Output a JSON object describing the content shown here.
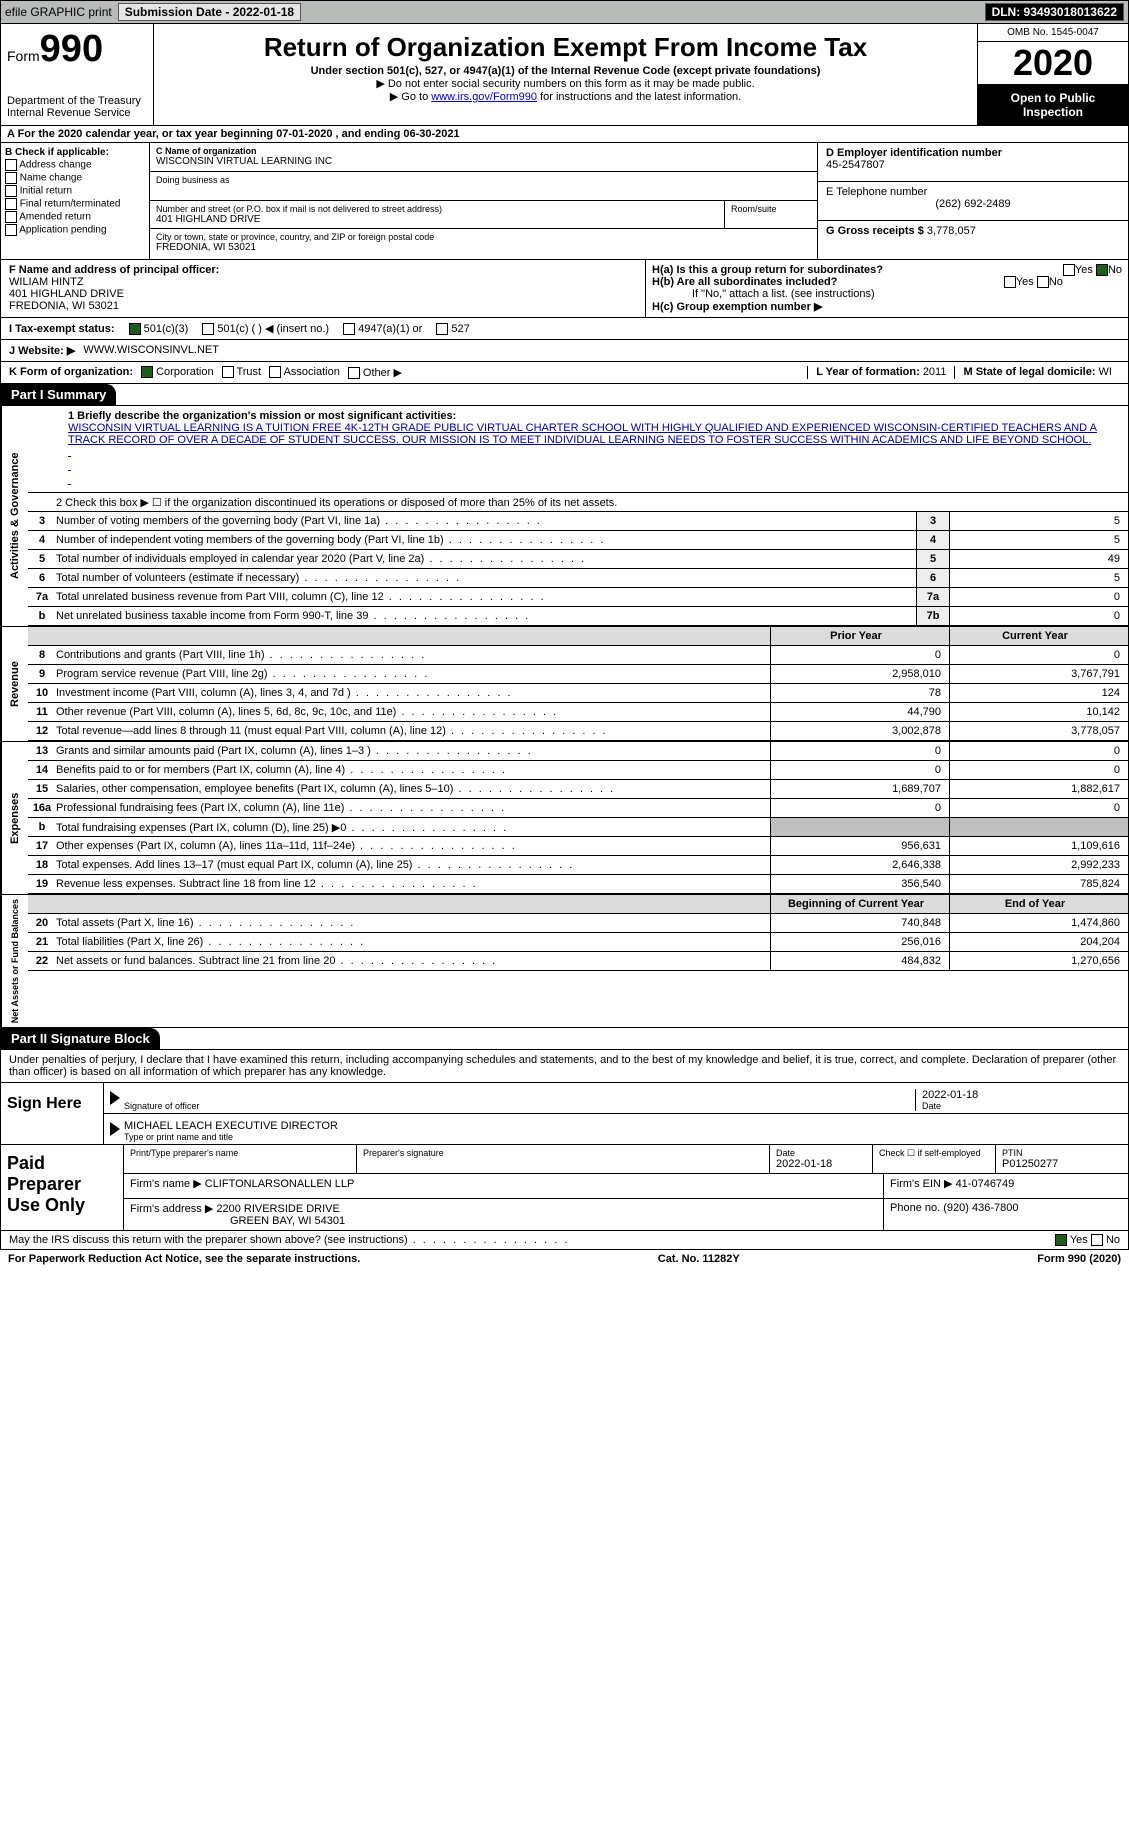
{
  "topbar": {
    "efile": "efile GRAPHIC print",
    "sub_label": "Submission Date - 2022-01-18",
    "dln_label": "DLN: 93493018013622"
  },
  "header": {
    "form_word": "Form",
    "form_no": "990",
    "dept1": "Department of the Treasury",
    "dept2": "Internal Revenue Service",
    "title": "Return of Organization Exempt From Income Tax",
    "sub1": "Under section 501(c), 527, or 4947(a)(1) of the Internal Revenue Code (except private foundations)",
    "sub2": "▶ Do not enter social security numbers on this form as it may be made public.",
    "sub3_pre": "▶ Go to ",
    "sub3_link": "www.irs.gov/Form990",
    "sub3_post": " for instructions and the latest information.",
    "omb": "OMB No. 1545-0047",
    "year": "2020",
    "open": "Open to Public Inspection"
  },
  "row_a": "A  For the 2020 calendar year, or tax year beginning 07-01-2020    , and ending 06-30-2021",
  "box_b_label": "B Check if applicable:",
  "box_b_opts": [
    "Address change",
    "Name change",
    "Initial return",
    "Final return/terminated",
    "Amended return",
    "Application pending"
  ],
  "box_c": {
    "label_name": "C Name of organization",
    "name": "WISCONSIN VIRTUAL LEARNING INC",
    "dba_label": "Doing business as",
    "dba": "",
    "addr_label": "Number and street (or P.O. box if mail is not delivered to street address)",
    "room_label": "Room/suite",
    "addr": "401 HIGHLAND DRIVE",
    "city_label": "City or town, state or province, country, and ZIP or foreign postal code",
    "city": "FREDONIA, WI  53021"
  },
  "box_d": {
    "label": "D Employer identification number",
    "ein": "45-2547807",
    "label_e": "E Telephone number",
    "phone": "(262) 692-2489",
    "label_g": "G Gross receipts $",
    "gross": "3,778,057"
  },
  "box_f": {
    "label": "F Name and address of principal officer:",
    "name": "WILIAM HINTZ",
    "addr1": "401 HIGHLAND DRIVE",
    "addr2": "FREDONIA, WI  53021"
  },
  "box_h": {
    "ha": "H(a)  Is this a group return for subordinates?",
    "hb": "H(b)  Are all subordinates included?",
    "hb_note": "If \"No,\" attach a list. (see instructions)",
    "hc": "H(c)  Group exemption number ▶",
    "yes": "Yes",
    "no": "No"
  },
  "row_i": {
    "label": "I   Tax-exempt status:",
    "o1": "501(c)(3)",
    "o2": "501(c) (  )  ◀ (insert no.)",
    "o3": "4947(a)(1) or",
    "o4": "527"
  },
  "row_j": {
    "label": "J   Website: ▶",
    "val": "WWW.WISCONSINVL.NET"
  },
  "row_k": {
    "label": "K Form of organization:",
    "o1": "Corporation",
    "o2": "Trust",
    "o3": "Association",
    "o4": "Other ▶",
    "l_label": "L Year of formation: ",
    "l_val": "2011",
    "m_label": "M State of legal domicile: ",
    "m_val": "WI"
  },
  "part1": {
    "hdr": "Part I      Summary",
    "l1_label": "1  Briefly describe the organization's mission or most significant activities:",
    "mission": "WISCONSIN VIRTUAL LEARNING IS A TUITION FREE 4K-12TH GRADE PUBLIC VIRTUAL CHARTER SCHOOL WITH HIGHLY QUALIFIED AND EXPERIENCED WISCONSIN-CERTIFIED TEACHERS AND A TRACK RECORD OF OVER A DECADE OF STUDENT SUCCESS. OUR MISSION IS TO MEET INDIVIDUAL LEARNING NEEDS TO FOSTER SUCCESS WITHIN ACADEMICS AND LIFE BEYOND SCHOOL.",
    "l2": "2   Check this box ▶ ☐  if the organization discontinued its operations or disposed of more than 25% of its net assets.",
    "lines_gov": [
      {
        "n": "3",
        "t": "Number of voting members of the governing body (Part VI, line 1a)",
        "box": "3",
        "v": "5"
      },
      {
        "n": "4",
        "t": "Number of independent voting members of the governing body (Part VI, line 1b)",
        "box": "4",
        "v": "5"
      },
      {
        "n": "5",
        "t": "Total number of individuals employed in calendar year 2020 (Part V, line 2a)",
        "box": "5",
        "v": "49"
      },
      {
        "n": "6",
        "t": "Total number of volunteers (estimate if necessary)",
        "box": "6",
        "v": "5"
      },
      {
        "n": "7a",
        "t": "Total unrelated business revenue from Part VIII, column (C), line 12",
        "box": "7a",
        "v": "0"
      },
      {
        "n": "b",
        "t": "Net unrelated business taxable income from Form 990-T, line 39",
        "box": "7b",
        "v": "0"
      }
    ],
    "hdr_prior": "Prior Year",
    "hdr_curr": "Current Year",
    "lines_rev": [
      {
        "n": "8",
        "t": "Contributions and grants (Part VIII, line 1h)",
        "p": "0",
        "c": "0"
      },
      {
        "n": "9",
        "t": "Program service revenue (Part VIII, line 2g)",
        "p": "2,958,010",
        "c": "3,767,791"
      },
      {
        "n": "10",
        "t": "Investment income (Part VIII, column (A), lines 3, 4, and 7d )",
        "p": "78",
        "c": "124"
      },
      {
        "n": "11",
        "t": "Other revenue (Part VIII, column (A), lines 5, 6d, 8c, 9c, 10c, and 11e)",
        "p": "44,790",
        "c": "10,142"
      },
      {
        "n": "12",
        "t": "Total revenue—add lines 8 through 11 (must equal Part VIII, column (A), line 12)",
        "p": "3,002,878",
        "c": "3,778,057"
      }
    ],
    "lines_exp": [
      {
        "n": "13",
        "t": "Grants and similar amounts paid (Part IX, column (A), lines 1–3 )",
        "p": "0",
        "c": "0"
      },
      {
        "n": "14",
        "t": "Benefits paid to or for members (Part IX, column (A), line 4)",
        "p": "0",
        "c": "0"
      },
      {
        "n": "15",
        "t": "Salaries, other compensation, employee benefits (Part IX, column (A), lines 5–10)",
        "p": "1,689,707",
        "c": "1,882,617"
      },
      {
        "n": "16a",
        "t": "Professional fundraising fees (Part IX, column (A), line 11e)",
        "p": "0",
        "c": "0"
      },
      {
        "n": "b",
        "t": "Total fundraising expenses (Part IX, column (D), line 25) ▶0",
        "p": "",
        "c": "",
        "gray": true
      },
      {
        "n": "17",
        "t": "Other expenses (Part IX, column (A), lines 11a–11d, 11f–24e)",
        "p": "956,631",
        "c": "1,109,616"
      },
      {
        "n": "18",
        "t": "Total expenses. Add lines 13–17 (must equal Part IX, column (A), line 25)",
        "p": "2,646,338",
        "c": "2,992,233"
      },
      {
        "n": "19",
        "t": "Revenue less expenses. Subtract line 18 from line 12",
        "p": "356,540",
        "c": "785,824"
      }
    ],
    "hdr_beg": "Beginning of Current Year",
    "hdr_end": "End of Year",
    "lines_net": [
      {
        "n": "20",
        "t": "Total assets (Part X, line 16)",
        "p": "740,848",
        "c": "1,474,860"
      },
      {
        "n": "21",
        "t": "Total liabilities (Part X, line 26)",
        "p": "256,016",
        "c": "204,204"
      },
      {
        "n": "22",
        "t": "Net assets or fund balances. Subtract line 21 from line 20",
        "p": "484,832",
        "c": "1,270,656"
      }
    ],
    "vtab_gov": "Activities & Governance",
    "vtab_rev": "Revenue",
    "vtab_exp": "Expenses",
    "vtab_net": "Net Assets or Fund Balances"
  },
  "part2": {
    "hdr": "Part II     Signature Block",
    "decl": "Under penalties of perjury, I declare that I have examined this return, including accompanying schedules and statements, and to the best of my knowledge and belief, it is true, correct, and complete. Declaration of preparer (other than officer) is based on all information of which preparer has any knowledge.",
    "sign_here": "Sign Here",
    "sig_officer_label": "Signature of officer",
    "sig_date": "2022-01-18",
    "date_label": "Date",
    "name_title": "MICHAEL LEACH  EXECUTIVE DIRECTOR",
    "type_label": "Type or print name and title"
  },
  "prep": {
    "hdr": "Paid Preparer Use Only",
    "h_name": "Print/Type preparer's name",
    "h_sig": "Preparer's signature",
    "h_date": "Date",
    "date_v": "2022-01-18",
    "h_check": "Check ☐ if self-employed",
    "h_ptin": "PTIN",
    "ptin_v": "P01250277",
    "firm_name_l": "Firm's name    ▶",
    "firm_name": "CLIFTONLARSONALLEN LLP",
    "firm_ein_l": "Firm's EIN ▶",
    "firm_ein": "41-0746749",
    "firm_addr_l": "Firm's address ▶",
    "firm_addr1": "2200 RIVERSIDE DRIVE",
    "firm_addr2": "GREEN BAY, WI  54301",
    "firm_phone_l": "Phone no.",
    "firm_phone": "(920) 436-7800"
  },
  "discuss": {
    "text": "May the IRS discuss this return with the preparer shown above? (see instructions)",
    "yes": "Yes",
    "no": "No"
  },
  "footer": {
    "pra": "For Paperwork Reduction Act Notice, see the separate instructions.",
    "cat": "Cat. No. 11282Y",
    "form": "Form 990 (2020)"
  },
  "style": {
    "bg_topbar": "#b8bcb8",
    "link_color": "#0000cc",
    "check_green": "#1a5e1a"
  }
}
